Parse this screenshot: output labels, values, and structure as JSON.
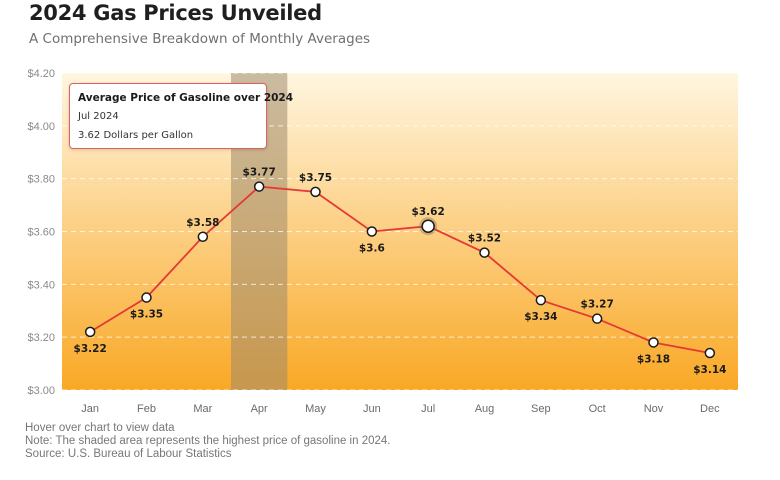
{
  "header": {
    "title": "2024 Gas Prices Unveiled",
    "subtitle": "A Comprehensive Breakdown of Monthly Averages"
  },
  "tooltip": {
    "title": "Average Price of Gasoline over 2024",
    "month": "Jul 2024",
    "value": "3.62 Dollars per Gallon"
  },
  "footer": {
    "hint": "Hover over chart to view data",
    "note": "Note: The shaded area represents the highest price of gasoline in 2024.",
    "source": "Source: U.S. Bureau of Labour Statistics"
  },
  "colors": {
    "line": "#e53935",
    "gradient_top": "#fff6e0",
    "gradient_bottom": "#f9a825",
    "highlight_band": "#9e8a6e",
    "marker_fill": "#ffffff",
    "marker_stroke": "#1a1a1a",
    "grid": "#ffffff"
  },
  "chart_data": {
    "type": "line",
    "title": "2024 Gas Prices Unveiled",
    "subtitle": "A Comprehensive Breakdown of Monthly Averages",
    "xlabel": "",
    "ylabel": "",
    "categories": [
      "Jan",
      "Feb",
      "Mar",
      "Apr",
      "May",
      "Jun",
      "Jul",
      "Aug",
      "Sep",
      "Oct",
      "Nov",
      "Dec"
    ],
    "series": [
      {
        "name": "Average Price of Gasoline over 2024",
        "values": [
          3.22,
          3.35,
          3.58,
          3.77,
          3.75,
          3.6,
          3.62,
          3.52,
          3.34,
          3.27,
          3.18,
          3.14
        ],
        "labels": [
          "$3.22",
          "$3.35",
          "$3.58",
          "$3.77",
          "$3.75",
          "$3.6",
          "$3.62",
          "$3.52",
          "$3.34",
          "$3.27",
          "$3.18",
          "$3.14"
        ],
        "label_position": [
          "below",
          "below",
          "above",
          "above",
          "above",
          "below",
          "above",
          "above",
          "below",
          "above",
          "below",
          "below"
        ]
      }
    ],
    "ylim": [
      3.0,
      4.2
    ],
    "yticks": [
      3.0,
      3.2,
      3.4,
      3.6,
      3.8,
      4.0,
      4.2
    ],
    "ytick_labels": [
      "$3.00",
      "$3.20",
      "$3.40",
      "$3.60",
      "$3.80",
      "$4.00",
      "$4.20"
    ],
    "grid": true,
    "grid_style": "dashed",
    "highlight_category": "Apr",
    "hovered_category": "Jul",
    "legend": "none"
  }
}
